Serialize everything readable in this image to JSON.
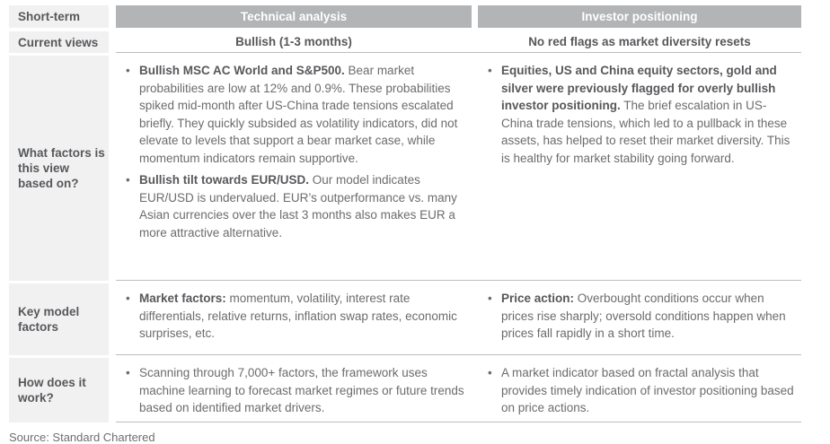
{
  "colors": {
    "header_bg": "#b2b4b6",
    "header_text": "#ffffff",
    "label_bg": "#f1f1f2",
    "body_text": "#6b6c6f",
    "bold_text": "#57585b",
    "rule": "#bdbec0"
  },
  "table": {
    "corner_label": "Short-term",
    "col_headers": [
      "Technical analysis",
      "Investor positioning"
    ],
    "current_views": {
      "label": "Current views",
      "technical": "Bullish (1-3 months)",
      "investor": "No red flags as market diversity resets"
    },
    "factors_row": {
      "label": "What factors is this view based on?",
      "technical_bullets": [
        {
          "lead": "Bullish MSC AC World and S&P500.",
          "rest": " Bear market probabilities are low at 12% and 0.9%. These probabilities spiked mid-month after US-China trade tensions escalated briefly. They quickly subsided as volatility indicators, did not elevate to levels that support a bear market case, while momentum indicators remain supportive."
        },
        {
          "lead": "Bullish tilt towards EUR/USD.",
          "rest": " Our model indicates EUR/USD is undervalued. EUR’s outperformance vs. many Asian currencies over the last 3 months also makes EUR a more attractive alternative."
        }
      ],
      "investor_bullets": [
        {
          "lead": "Equities, US and China equity sectors, gold and silver were previously flagged for overly bullish investor positioning.",
          "rest": " The brief escalation in US-China trade tensions, which led to a pullback in these assets, has helped to reset their market diversity. This is healthy for market stability going forward."
        }
      ]
    },
    "model_row": {
      "label": "Key model factors",
      "technical_bullets": [
        {
          "lead": "Market factors:",
          "rest": " momentum, volatility, interest rate differentials, relative returns, inflation swap rates, economic surprises, etc."
        }
      ],
      "investor_bullets": [
        {
          "lead": "Price action:",
          "rest": " Overbought conditions occur when prices rise sharply; oversold conditions happen when prices fall rapidly in a short time."
        }
      ]
    },
    "how_row": {
      "label": "How does it work?",
      "technical_bullets": [
        {
          "lead": "",
          "rest": "Scanning through 7,000+ factors, the framework uses machine learning to forecast market regimes or future trends based on identified market drivers."
        }
      ],
      "investor_bullets": [
        {
          "lead": "",
          "rest": "A market indicator based on fractal analysis that provides timely indication of investor positioning based on price actions."
        }
      ]
    }
  },
  "footer": {
    "source": "Source: Standard Chartered"
  }
}
